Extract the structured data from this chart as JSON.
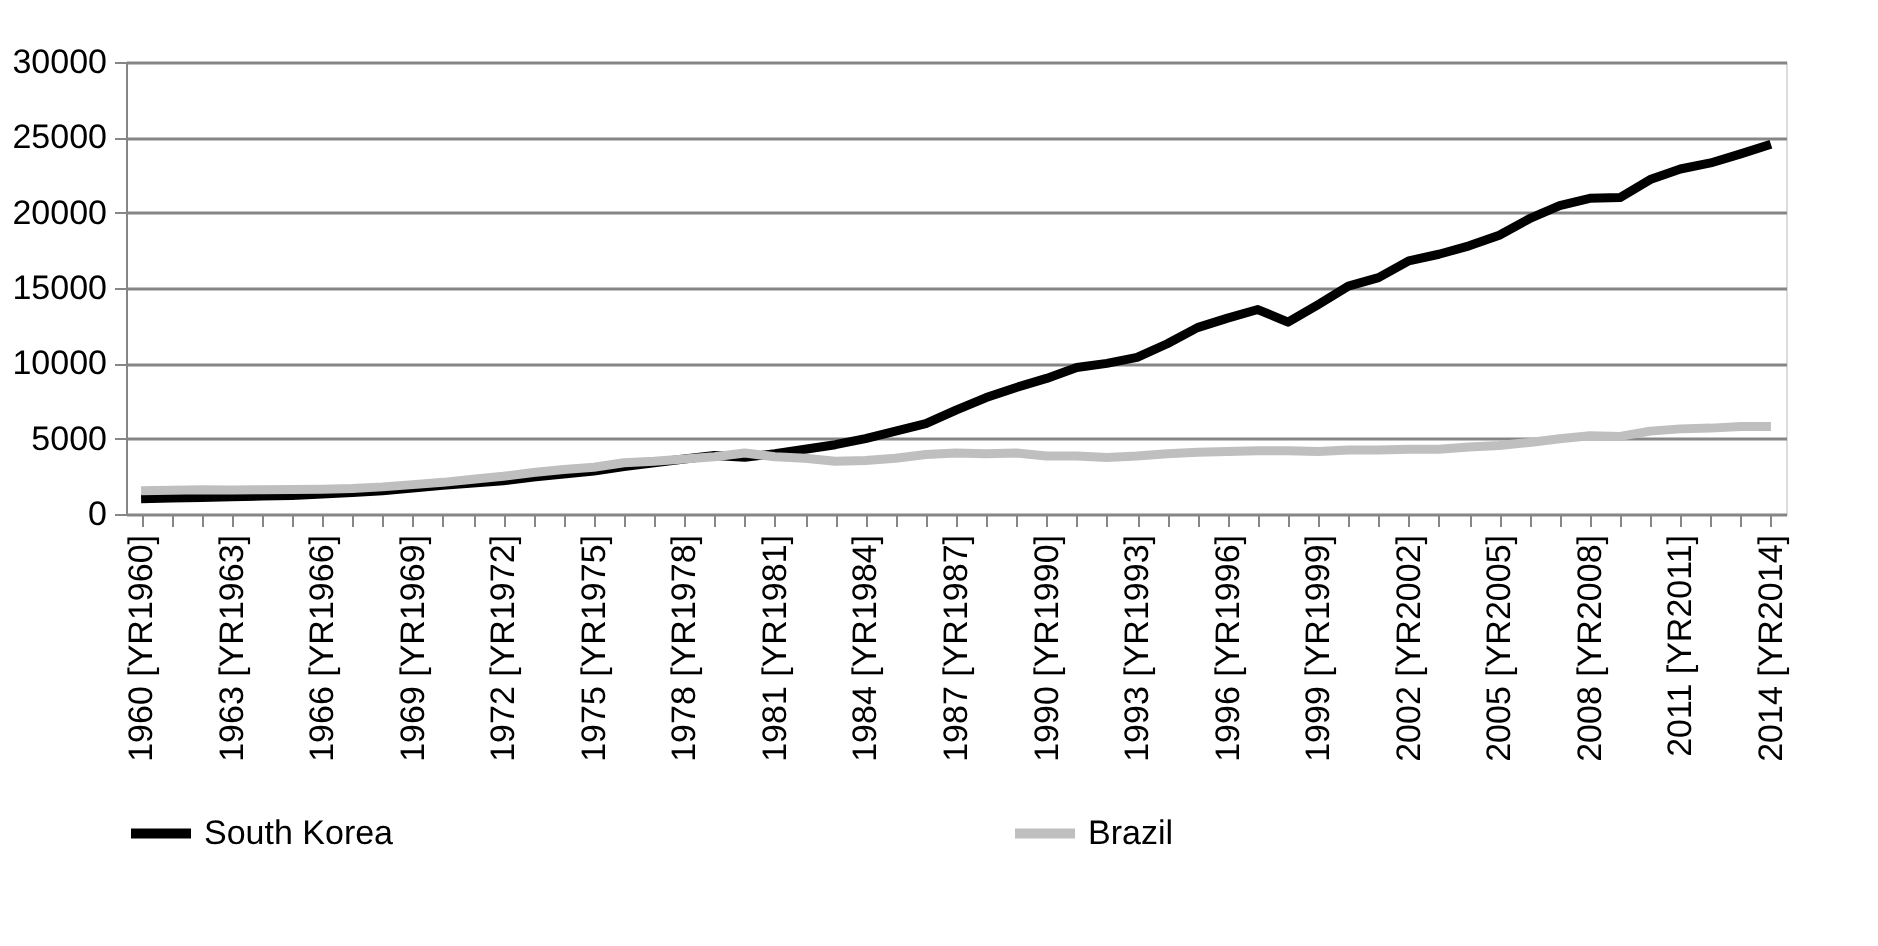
{
  "chart_data": {
    "type": "line",
    "categories": [
      "1960 [YR1960]",
      null,
      null,
      "1963 [YR1963]",
      null,
      null,
      "1966 [YR1966]",
      null,
      null,
      "1969 [YR1969]",
      null,
      null,
      "1972 [YR1972]",
      null,
      null,
      "1975 [YR1975]",
      null,
      null,
      "1978 [YR1978]",
      null,
      null,
      "1981 [YR1981]",
      null,
      null,
      "1984 [YR1984]",
      null,
      null,
      "1987 [YR1987]",
      null,
      null,
      "1990 [YR1990]",
      null,
      null,
      "1993 [YR1993]",
      null,
      null,
      "1996 [YR1996]",
      null,
      null,
      "1999 [YR1999]",
      null,
      null,
      "2002 [YR2002]",
      null,
      null,
      "2005 [YR2005]",
      null,
      null,
      "2008 [YR2008]",
      null,
      null,
      "2011 [YR2011]",
      null,
      null,
      "2014 [YR2014]"
    ],
    "series": [
      {
        "name": "South Korea",
        "color": "#000000",
        "values": [
          1020,
          1060,
          1090,
          1140,
          1190,
          1230,
          1330,
          1420,
          1550,
          1720,
          1900,
          2050,
          2200,
          2450,
          2650,
          2850,
          3150,
          3400,
          3650,
          3890,
          3760,
          4000,
          4300,
          4600,
          5000,
          5500,
          6000,
          6900,
          7730,
          8400,
          9000,
          9720,
          10000,
          10400,
          11300,
          12370,
          13000,
          13570,
          12730,
          13900,
          15120,
          15690,
          16800,
          17240,
          17800,
          18500,
          19600,
          20470,
          20950,
          21000,
          22200,
          22900,
          23300,
          23900,
          24540
        ]
      },
      {
        "name": "Brazil",
        "color": "#bfbfbf",
        "values": [
          1550,
          1570,
          1610,
          1600,
          1610,
          1620,
          1650,
          1700,
          1800,
          1950,
          2100,
          2300,
          2500,
          2750,
          2950,
          3100,
          3400,
          3500,
          3650,
          3800,
          4050,
          3800,
          3700,
          3500,
          3550,
          3700,
          3950,
          4050,
          4000,
          4050,
          3850,
          3850,
          3750,
          3850,
          4000,
          4100,
          4150,
          4200,
          4200,
          4150,
          4250,
          4250,
          4300,
          4300,
          4450,
          4550,
          4750,
          5000,
          5200,
          5150,
          5500,
          5650,
          5700,
          5800,
          5800
        ]
      }
    ],
    "ylim": [
      0,
      30000
    ],
    "yticks": [
      0,
      5000,
      10000,
      15000,
      20000,
      25000,
      30000
    ],
    "grid": "y",
    "legend": "bottom",
    "marker": "none",
    "line_style": "solid"
  }
}
